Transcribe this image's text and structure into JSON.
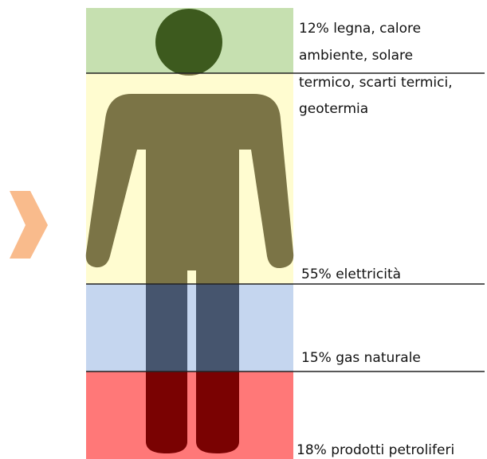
{
  "bands": [
    {
      "lines": [
        "12%  legna, calore",
        "ambiente, solare",
        "termico, scarti termici,",
        "geotermia"
      ]
    },
    {
      "lines": [
        "55% elettricità"
      ]
    },
    {
      "lines": [
        "15% gas naturale"
      ]
    },
    {
      "lines": [
        "18% prodotti petroliferi"
      ]
    }
  ]
}
